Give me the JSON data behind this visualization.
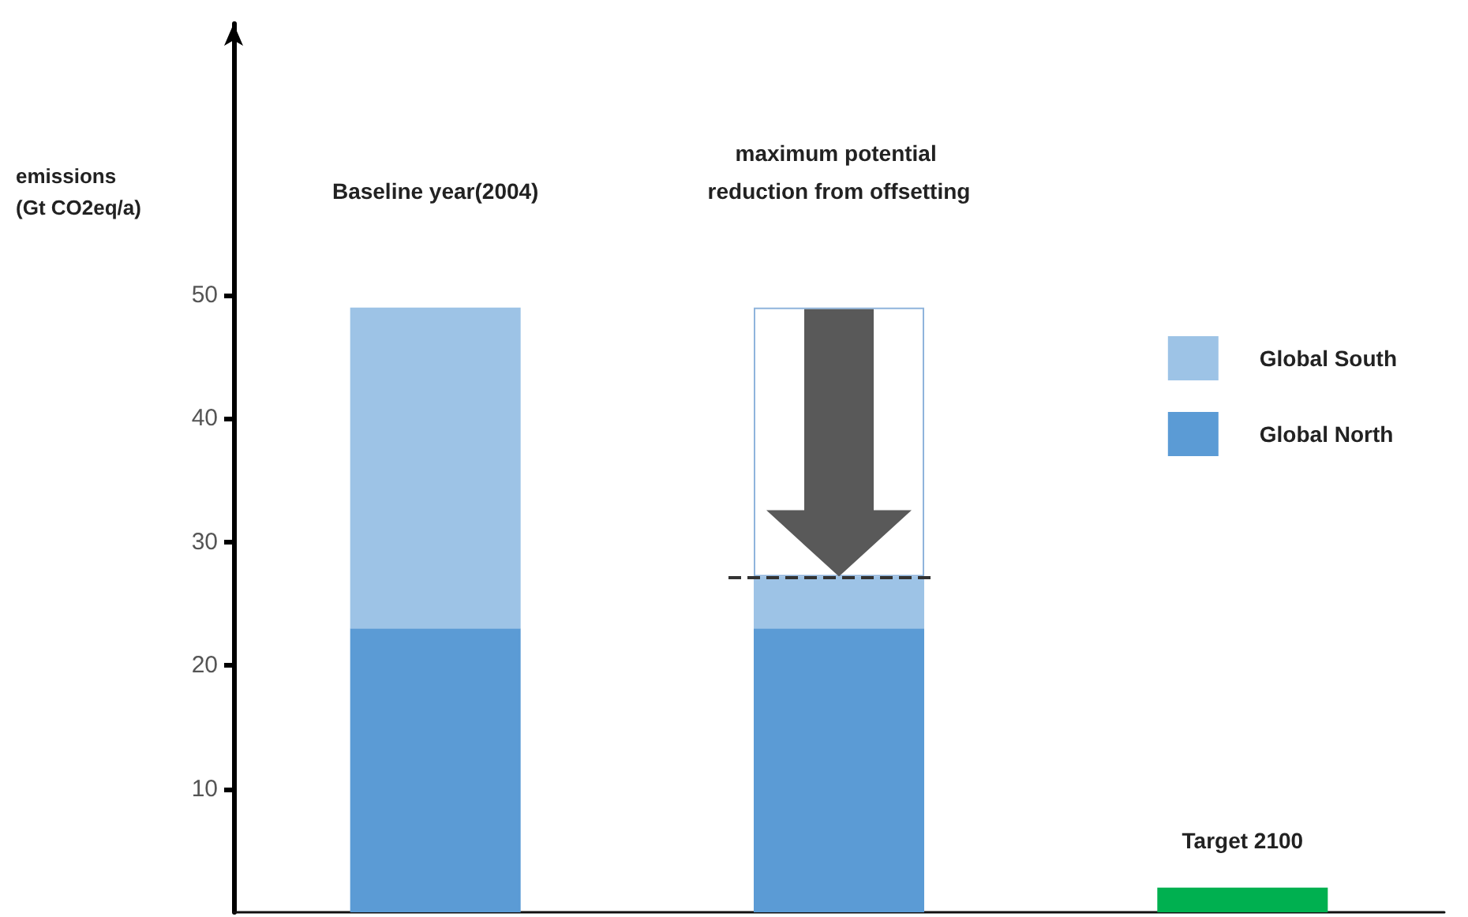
{
  "chart_data": {
    "type": "bar",
    "stacked": true,
    "ylabel": "emissions\n(Gt CO2eq/a)",
    "categories": [
      "Baseline year(2004)",
      "maximum potential reduction from offsetting",
      "Target 2100"
    ],
    "series": [
      {
        "name": "Global North",
        "color": "#5b9bd5",
        "values": [
          23,
          23,
          null
        ]
      },
      {
        "name": "Global South",
        "color": "#9dc3e6",
        "values": [
          26,
          4.2,
          null
        ]
      },
      {
        "color": "#ffffff",
        "values": [
          null,
          21.8,
          null
        ]
      },
      {
        "color": "#00b050",
        "values": [
          null,
          null,
          2
        ]
      }
    ],
    "ylim": [
      0,
      72
    ],
    "yticks": [
      10,
      20,
      30,
      40,
      50
    ],
    "ref_lines": [
      {
        "axis": "y",
        "value": 27.2,
        "line_style": "dashed",
        "color": "#333333"
      }
    ],
    "legend": "right",
    "grid": false
  }
}
